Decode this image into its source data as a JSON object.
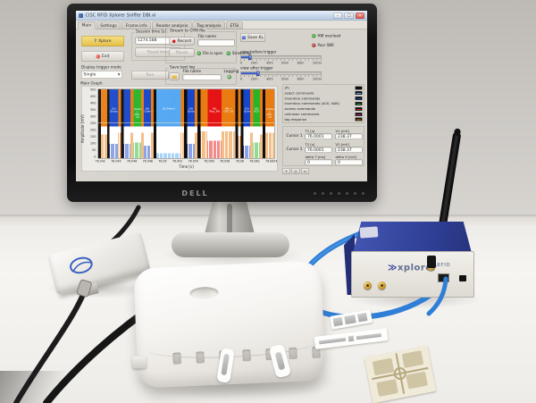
{
  "scene": {
    "monitor": {
      "brand": "DELL"
    },
    "reader": {
      "logo_prefix": "≫",
      "logo_text": "xplorer",
      "logo_suffix": "RFID"
    }
  },
  "app": {
    "window": {
      "title": "CISC RFID Xplorer Sniffer DBI.vi",
      "min_glyph": "–",
      "max_glyph": "□",
      "close_glyph": "×"
    },
    "tabs": [
      "Main",
      "Settings",
      "Frame info",
      "Reader analysis",
      "Tag analysis",
      "ETSI"
    ],
    "left": {
      "xplore_button": "Xplore",
      "exit_button": "Exit",
      "session_time_label": "Session time [s]",
      "session_time_value": "1274.588",
      "reset_time_button": "Reset time",
      "display_trigger_label": "Display trigger mode",
      "display_trigger_value": "Single",
      "run_button": "Run"
    },
    "stream": {
      "group_label": "Stream to OTM file",
      "record_button": "Record",
      "pause_button": "Pause",
      "file_name_label": "File name",
      "file_name_value": "",
      "leds": [
        {
          "label": "File is open",
          "color": "#2ecc2e"
        },
        {
          "label": "Streaming",
          "color": "#2ecc2e"
        }
      ]
    },
    "textlog": {
      "group_label": "Save text log",
      "file_name_label": "File name",
      "file_name_value": "",
      "logging_label": "Logging",
      "led_color": "#2ecc2e"
    },
    "right": {
      "save_button": "Save KL",
      "leds": [
        {
          "label": "HW overload",
          "color": "#2ecc2e"
        },
        {
          "label": "Poor SNR",
          "color": "#e03030"
        }
      ],
      "sliders": [
        {
          "label": "view before trigger",
          "ticks": [
            "0",
            "20m",
            "40m",
            "60m",
            "80m",
            "100m"
          ],
          "fill_pct": 11
        },
        {
          "label": "view after trigger",
          "ticks": [
            "0",
            "20m",
            "40m",
            "60m",
            "80m",
            "100m"
          ],
          "fill_pct": 21
        }
      ]
    },
    "cursors": {
      "c1_label": "Cursor 1",
      "c2_label": "Cursor 2",
      "t1_label": "T1 [s]",
      "t1": "76.0001",
      "v1_label": "V1 [mV]",
      "v1": "238.37",
      "t2_label": "T2 [s]",
      "t2": "76.0001",
      "v2_label": "V2 [mV]",
      "v2": "238.37",
      "dt_label": "delta T [ms]",
      "dt": "0",
      "dv_label": "delta V [mV]",
      "dv": "0"
    },
    "graph_tools": [
      "+",
      "◎",
      "⇔"
    ]
  },
  "chart_data": {
    "type": "area",
    "title": "Main Graph",
    "xlabel": "Time [s]",
    "ylabel": "Amplitude [mV]",
    "xlim": [
      76.042,
      76.0634
    ],
    "ylim": [
      0,
      500
    ],
    "grid": false,
    "legend_position": "right",
    "xticks": [
      "76.042",
      "76.044",
      "76.046",
      "76.048",
      "76.05",
      "76.052",
      "76.054",
      "76.056",
      "76.058",
      "76.06",
      "76.062",
      "76.0634"
    ],
    "yticks": [
      "500",
      "450",
      "400",
      "350",
      "300",
      "250",
      "200",
      "150",
      "100",
      "50",
      "0"
    ],
    "cursor_level_mV": 255,
    "classes": {
      "gap": "#0d0d0d",
      "inventory": "#1846c8",
      "select": "#55a8f2",
      "tag_ack": "#28b428",
      "access": "#e41414",
      "tag": "#e87c12"
    },
    "legend": [
      {
        "label": "(P)",
        "color": "#101010"
      },
      {
        "label": "select commands",
        "color": "#55a8f2"
      },
      {
        "label": "inventory commands",
        "color": "#1846c8"
      },
      {
        "label": "inventory commands (ACK, NAK)",
        "color": "#28b428"
      },
      {
        "label": "access commands",
        "color": "#e41414"
      },
      {
        "label": "unknown commands",
        "color": "#c0208a"
      },
      {
        "label": "tag response",
        "color": "#e87c12"
      }
    ],
    "bands": [
      {
        "from": 0.0,
        "to": 0.016,
        "class": "gap",
        "label": "",
        "spike": 0
      },
      {
        "from": 0.016,
        "to": 0.05,
        "class": "tag",
        "label": "",
        "spike": 0.75
      },
      {
        "from": 0.05,
        "to": 0.064,
        "class": "gap",
        "label": "",
        "spike": 0
      },
      {
        "from": 0.064,
        "to": 0.114,
        "class": "inventory",
        "label": "(Q) Query",
        "spike": 0.45
      },
      {
        "from": 0.114,
        "to": 0.13,
        "class": "tag",
        "label": "",
        "spike": 0.8
      },
      {
        "from": 0.13,
        "to": 0.144,
        "class": "gap",
        "label": "",
        "spike": 0
      },
      {
        "from": 0.144,
        "to": 0.184,
        "class": "inventory",
        "label": "",
        "spike": 0.45
      },
      {
        "from": 0.184,
        "to": 0.2,
        "class": "tag",
        "label": "",
        "spike": 0.8
      },
      {
        "from": 0.2,
        "to": 0.244,
        "class": "tag_ack",
        "label": "(Data) + CRC-16",
        "spike": 0.5
      },
      {
        "from": 0.244,
        "to": 0.26,
        "class": "tag",
        "label": "",
        "spike": 0.8
      },
      {
        "from": 0.26,
        "to": 0.3,
        "class": "inventory",
        "label": "(Q) QueryRep",
        "spike": 0.4
      },
      {
        "from": 0.3,
        "to": 0.316,
        "class": "tag",
        "label": "",
        "spike": 0.8
      },
      {
        "from": 0.316,
        "to": 0.33,
        "class": "gap",
        "label": "",
        "spike": 0
      },
      {
        "from": 0.33,
        "to": 0.47,
        "class": "select",
        "label": "(S) Select",
        "spike": 0.15
      },
      {
        "from": 0.47,
        "to": 0.488,
        "class": "tag",
        "label": "",
        "spike": 0.8
      },
      {
        "from": 0.488,
        "to": 0.504,
        "class": "gap",
        "label": "",
        "spike": 0
      },
      {
        "from": 0.504,
        "to": 0.548,
        "class": "inventory",
        "label": "(Q) Query",
        "spike": 0.45
      },
      {
        "from": 0.548,
        "to": 0.564,
        "class": "tag",
        "label": "",
        "spike": 0.8
      },
      {
        "from": 0.564,
        "to": 0.58,
        "class": "gap",
        "label": "",
        "spike": 0
      },
      {
        "from": 0.58,
        "to": 0.622,
        "class": "tag",
        "label": "",
        "spike": 0.85
      },
      {
        "from": 0.622,
        "to": 0.7,
        "class": "access",
        "label": "(R) Req_RN",
        "spike": 0.55
      },
      {
        "from": 0.7,
        "to": 0.78,
        "class": "tag",
        "label": "RN + CRC-16",
        "spike": 0.85
      },
      {
        "from": 0.78,
        "to": 0.794,
        "class": "gap",
        "label": "",
        "spike": 0
      },
      {
        "from": 0.794,
        "to": 0.81,
        "class": "tag",
        "label": "",
        "spike": 0.7
      },
      {
        "from": 0.81,
        "to": 0.824,
        "class": "gap",
        "label": "",
        "spike": 0
      },
      {
        "from": 0.824,
        "to": 0.864,
        "class": "inventory",
        "label": "(Q) QueryRep",
        "spike": 0.4
      },
      {
        "from": 0.864,
        "to": 0.88,
        "class": "tag",
        "label": "",
        "spike": 0.8
      },
      {
        "from": 0.88,
        "to": 0.918,
        "class": "tag_ack",
        "label": "(R) ACK",
        "spike": 0.5
      },
      {
        "from": 0.918,
        "to": 0.934,
        "class": "tag",
        "label": "",
        "spike": 0.75
      },
      {
        "from": 0.934,
        "to": 0.95,
        "class": "gap",
        "label": "",
        "spike": 0
      },
      {
        "from": 0.95,
        "to": 1.0,
        "class": "tag",
        "label": "(Data) + CRC-16",
        "spike": 0.8
      }
    ]
  }
}
